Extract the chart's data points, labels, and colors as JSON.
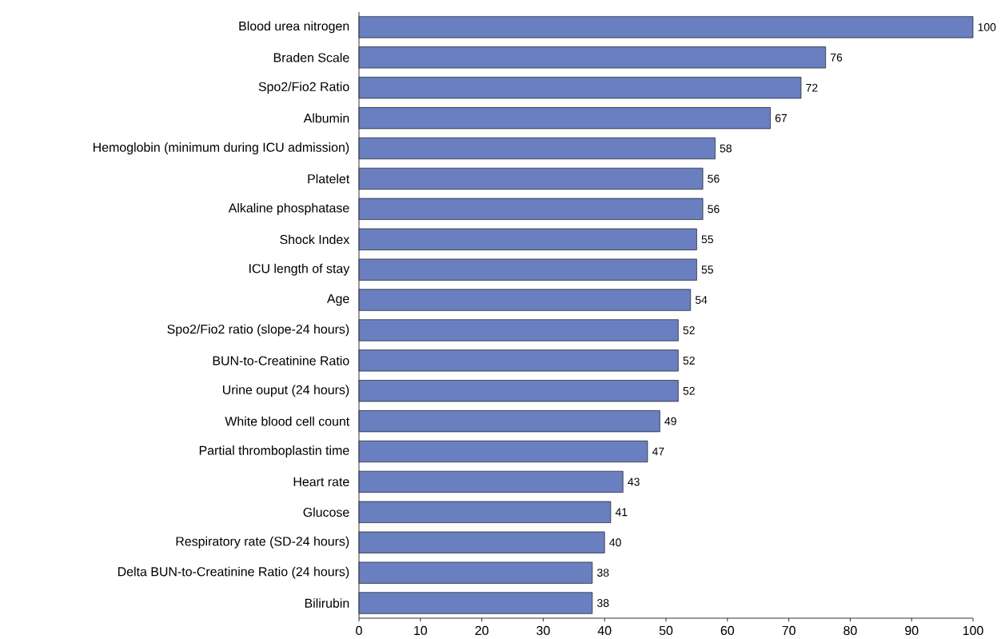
{
  "chart_data": {
    "type": "bar",
    "orientation": "horizontal",
    "categories": [
      "Blood urea nitrogen",
      "Braden Scale",
      "Spo2/Fio2 Ratio",
      "Albumin",
      "Hemoglobin (minimum during ICU admission)",
      "Platelet",
      "Alkaline phosphatase",
      "Shock Index",
      "ICU length of stay",
      "Age",
      "Spo2/Fio2 ratio (slope-24 hours)",
      "BUN-to-Creatinine Ratio",
      "Urine ouput (24 hours)",
      "White blood cell count",
      "Partial thromboplastin time",
      "Heart rate",
      "Glucose",
      "Respiratory rate (SD-24 hours)",
      "Delta BUN-to-Creatinine Ratio (24 hours)",
      "Bilirubin"
    ],
    "values": [
      100,
      76,
      72,
      67,
      58,
      56,
      56,
      55,
      55,
      54,
      52,
      52,
      52,
      49,
      47,
      43,
      41,
      40,
      38,
      38
    ],
    "color": "#6a7fc0",
    "data_labels": true,
    "xlim": [
      0,
      100
    ],
    "xticks": [
      0,
      10,
      20,
      30,
      40,
      50,
      60,
      70,
      80,
      90,
      100
    ],
    "grid": false
  }
}
